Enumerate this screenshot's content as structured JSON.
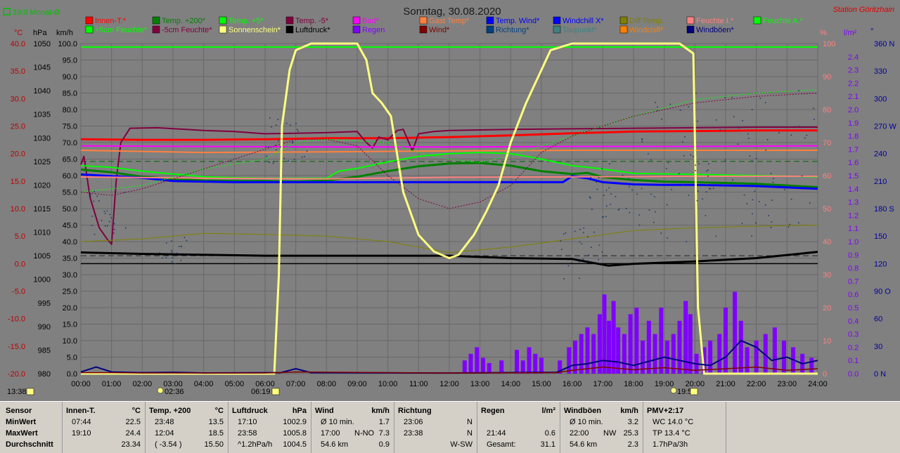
{
  "chart_data": {
    "type": "line",
    "title": "Sonntag, 30.08.2020",
    "station": "Station Göritzhain",
    "monthly_avg_label": "19.0 Monat-Ø",
    "axes": {
      "temp": {
        "unit": "°C",
        "range": [
          -20,
          40
        ],
        "ticks": [
          "40.0",
          "35.0",
          "30.0",
          "25.0",
          "20.0",
          "15.0",
          "10.0",
          "5.0",
          "0.0",
          "-5.0",
          "-10.0",
          "-15.0",
          "-20.0"
        ]
      },
      "pressure": {
        "unit": "hPa",
        "range": [
          980,
          1050
        ],
        "ticks": [
          "1050",
          "1045",
          "1040",
          "1035",
          "1030",
          "1025",
          "1020",
          "1015",
          "1010",
          "1005",
          "1000",
          "995",
          "990",
          "985",
          "980"
        ]
      },
      "wind": {
        "unit": "km/h",
        "range": [
          0,
          100
        ],
        "ticks": [
          "100.0",
          "95.0",
          "90.0",
          "85.0",
          "80.0",
          "75.0",
          "70.0",
          "65.0",
          "60.0",
          "55.0",
          "50.0",
          "45.0",
          "40.0",
          "35.0",
          "30.0",
          "25.0",
          "20.0",
          "15.0",
          "10.0",
          "5.0",
          "0.0"
        ]
      },
      "humidity": {
        "unit": "%",
        "range": [
          0,
          100
        ],
        "ticks": [
          "100",
          "90",
          "80",
          "70",
          "60",
          "50",
          "40",
          "30",
          "20",
          "10",
          "0"
        ]
      },
      "rain": {
        "unit": "l/m²",
        "range": [
          0,
          2.5
        ],
        "ticks": [
          "2.4",
          "2.3",
          "2.2",
          "2.1",
          "2.0",
          "1.9",
          "1.8",
          "1.7",
          "1.6",
          "1.5",
          "1.4",
          "1.3",
          "1.2",
          "1.1",
          "1.0",
          "0.9",
          "0.8",
          "0.7",
          "0.6",
          "0.5",
          "0.4",
          "0.3",
          "0.2",
          "0.1",
          "0.0"
        ]
      },
      "direction": {
        "unit": "°",
        "range": [
          0,
          360
        ],
        "ticks": [
          "360 N",
          "330",
          "300",
          "270 W",
          "240",
          "210",
          "180 S",
          "150",
          "120",
          "90 O",
          "60",
          "30",
          "0 N"
        ]
      },
      "time_ticks": [
        "00:00",
        "01:00",
        "02:00",
        "03:00",
        "04:00",
        "05:00",
        "06:00",
        "07:00",
        "08:00",
        "09:00",
        "10:00",
        "11:00",
        "12:00",
        "13:00",
        "14:00",
        "15:00",
        "16:00",
        "17:00",
        "18:00",
        "19:00",
        "20:00",
        "21:00",
        "22:00",
        "23:00",
        "24:00"
      ]
    },
    "sun_markers": {
      "moonset": "02:36",
      "sunrise": "06:19",
      "sunset": "19:57",
      "now": "13:38"
    },
    "legend": [
      {
        "label": "Innen-T.*",
        "color": "#ff0000"
      },
      {
        "label": "Temp. +200*",
        "color": "#008000"
      },
      {
        "label": "Temp. +5*",
        "color": "#00ff00"
      },
      {
        "label": "Temp. -5*",
        "color": "#800040"
      },
      {
        "label": "Bad*",
        "color": "#ff00ff"
      },
      {
        "label": "Gast Temp*",
        "color": "#ff8040"
      },
      {
        "label": "Temp. Wind*",
        "color": "#0000ff"
      },
      {
        "label": "Windchill X*",
        "color": "#0000ff"
      },
      {
        "label": "Diff Temp.",
        "color": "#808000"
      },
      {
        "label": "Feuchte I.*",
        "color": "#ff8080"
      },
      {
        "label": "Feuchte A.*",
        "color": "#00ff00"
      },
      {
        "label": "+5cm Feuchte*",
        "color": "#00ff00"
      },
      {
        "label": "-5cm Feuchte*",
        "color": "#800040"
      },
      {
        "label": "Sonnenschein*",
        "color": "#ffff80"
      },
      {
        "label": "Luftdruck*",
        "color": "#000000"
      },
      {
        "label": "Regen",
        "color": "#8000ff"
      },
      {
        "label": "Wind*",
        "color": "#800000"
      },
      {
        "label": "Richtung*",
        "color": "#004080"
      },
      {
        "label": "Taupunkt*",
        "color": "#408080"
      },
      {
        "label": "Windchill*",
        "color": "#ff8000"
      },
      {
        "label": "Windböen*",
        "color": "#000080"
      }
    ],
    "series": [
      {
        "name": "Innen-T.*",
        "color": "#ff0000",
        "axis": "temp",
        "width": 3,
        "x": [
          0,
          2,
          4,
          6,
          8,
          10,
          12,
          14,
          16,
          18,
          20,
          22,
          24
        ],
        "y": [
          22.6,
          22.5,
          22.5,
          22.6,
          22.8,
          22.8,
          23.0,
          23.3,
          23.7,
          24.0,
          24.1,
          24.2,
          24.2
        ]
      },
      {
        "name": "Temp. -5*",
        "color": "#800040",
        "axis": "temp",
        "width": 2,
        "x": [
          0,
          0.1,
          0.3,
          0.6,
          0.85,
          1.0,
          1.15,
          1.3,
          1.6,
          2.5,
          4,
          5,
          6,
          7,
          8,
          9,
          9.3,
          9.5,
          9.7,
          10,
          10.3,
          10.5,
          10.8,
          11,
          11.5,
          12,
          14,
          16,
          18,
          20,
          22,
          24
        ],
        "y": [
          18,
          19.5,
          12,
          6.5,
          4.5,
          3.5,
          15,
          22,
          24.6,
          24.7,
          24.2,
          24.0,
          23.6,
          23.7,
          23.8,
          24.0,
          22,
          21,
          23,
          22.5,
          24.2,
          24.4,
          20.5,
          23.6,
          24.0,
          24.2,
          24.4,
          24.5,
          24.6,
          24.7,
          24.8,
          24.8
        ]
      },
      {
        "name": "Bad*",
        "color": "#ff00ff",
        "axis": "temp",
        "width": 2,
        "x": [
          0,
          4,
          8,
          12,
          16,
          20,
          24
        ],
        "y": [
          21.4,
          21.3,
          21.2,
          21.2,
          21.3,
          21.3,
          21.4
        ]
      },
      {
        "name": "Gast Temp*",
        "color": "#ff8040",
        "axis": "temp",
        "width": 2,
        "x": [
          0,
          4,
          8,
          12,
          16,
          20,
          24
        ],
        "y": [
          20.6,
          20.2,
          20.3,
          20.5,
          20.6,
          20.6,
          20.6
        ]
      },
      {
        "name": "Temp. +5*",
        "color": "#00ff00",
        "axis": "temp",
        "width": 2,
        "x": [
          0,
          1,
          2,
          3,
          4,
          5,
          6,
          7,
          8,
          8.4,
          9,
          10,
          11,
          12,
          13,
          14,
          15,
          16,
          17,
          18,
          20,
          22,
          24
        ],
        "y": [
          17.8,
          17.5,
          16.8,
          16.3,
          15.8,
          15.6,
          15.5,
          15.5,
          15.5,
          16.8,
          17.3,
          18.5,
          19.5,
          20,
          20.2,
          20,
          19,
          17.8,
          17.2,
          16.4,
          16.2,
          16.0,
          15.8
        ]
      },
      {
        "name": "Temp. +200*",
        "color": "#008000",
        "axis": "temp",
        "width": 3,
        "x": [
          0,
          1,
          2,
          3,
          4,
          5,
          6,
          7,
          8,
          9,
          10,
          11,
          12,
          13,
          14,
          15,
          16,
          16.5,
          17,
          18,
          19,
          20,
          22,
          24
        ],
        "y": [
          17.1,
          16.6,
          15.8,
          15.4,
          15.1,
          15.0,
          15.0,
          14.9,
          15.1,
          15.8,
          16.8,
          17.7,
          18.2,
          18.3,
          17.8,
          16.8,
          16.3,
          16.5,
          15.7,
          15.2,
          14.9,
          14.8,
          14.5,
          13.9
        ]
      },
      {
        "name": "Temp. Wind*",
        "color": "#0000ff",
        "axis": "temp",
        "width": 3,
        "x": [
          0,
          1,
          2,
          3,
          4,
          5,
          6,
          7,
          8,
          9,
          10,
          11,
          12,
          13,
          14,
          15,
          15.7,
          16,
          16.5,
          17,
          18,
          19,
          20,
          22,
          24
        ],
        "y": [
          16.2,
          15.9,
          15.6,
          15.0,
          14.9,
          14.8,
          14.8,
          14.8,
          14.8,
          14.8,
          14.8,
          14.8,
          14.8,
          14.8,
          14.8,
          14.8,
          14.8,
          15.9,
          15.5,
          14.8,
          14.4,
          14.3,
          14.3,
          14.1,
          13.6
        ]
      },
      {
        "name": "Feuchte I.*",
        "color": "#ff8080",
        "axis": "humidity",
        "width": 2,
        "x": [
          0,
          4,
          8,
          12,
          16,
          20,
          24
        ],
        "y": [
          59.6,
          59.2,
          59,
          59.5,
          59.6,
          59.8,
          59.8
        ]
      },
      {
        "name": "Diff Temp.",
        "color": "#808000",
        "axis": "temp",
        "width": 1,
        "x": [
          0,
          2,
          4,
          6,
          8,
          10,
          12,
          14,
          16,
          18,
          20,
          22,
          24
        ],
        "y": [
          4.0,
          4.5,
          5.5,
          5.3,
          5.0,
          4.0,
          2.0,
          3.0,
          4.5,
          6.0,
          6.5,
          6.8,
          7.0
        ]
      },
      {
        "name": "Luftdruck*",
        "color": "#000000",
        "axis": "pressure",
        "width": 3,
        "x": [
          0,
          2,
          4,
          6,
          8,
          10,
          12,
          14,
          16,
          17.17,
          18,
          20,
          22,
          23.97,
          24
        ],
        "y": [
          1005.7,
          1005.4,
          1005.2,
          1005.0,
          1005.0,
          1005.0,
          1005.0,
          1004.5,
          1004.3,
          1002.9,
          1003.3,
          1003.8,
          1004.5,
          1005.8,
          1005.8
        ]
      },
      {
        "name": "Feuchte A.*",
        "color": "#00ff00",
        "axis": "humidity",
        "width": 1,
        "dash": "2,2",
        "x": [
          0,
          2,
          4,
          6,
          7,
          8,
          10,
          11,
          12,
          13,
          14,
          15,
          16,
          17,
          18,
          20,
          22,
          24
        ],
        "y": [
          55,
          57,
          62,
          65,
          70,
          71,
          70,
          67,
          65,
          64,
          66,
          69,
          72,
          75,
          78,
          83,
          85,
          86
        ]
      },
      {
        "name": "Taupunkt*",
        "color": "#800040",
        "axis": "humidity",
        "width": 1,
        "dash": "2,2",
        "x": [
          0,
          1,
          2,
          4,
          6,
          7,
          8,
          9,
          10,
          11,
          12,
          13,
          14,
          15,
          16,
          17,
          18,
          20,
          22,
          24
        ],
        "y": [
          55,
          54,
          56,
          62,
          68,
          71,
          71,
          69,
          60,
          53,
          50,
          52,
          57,
          67,
          72,
          75,
          78,
          82,
          84,
          85
        ]
      },
      {
        "name": "Sonnenschein*",
        "color": "#ffff80",
        "axis": "wind",
        "width": 3,
        "x": [
          0,
          6.3,
          6.45,
          6.55,
          6.8,
          7,
          7.5,
          8.5,
          9.0,
          9.3,
          9.5,
          9.8,
          10.1,
          10.5,
          11,
          11.5,
          12,
          12.3,
          12.8,
          13.2,
          13.6,
          14,
          14.5,
          15,
          15.3,
          16,
          19.5,
          19.95,
          20.1,
          20.3,
          24
        ],
        "y": [
          0,
          0,
          30,
          75,
          92,
          98,
          100,
          100,
          100,
          95,
          85,
          82,
          78,
          55,
          42,
          37,
          35,
          36,
          42,
          49,
          57,
          70,
          82,
          92,
          98,
          100,
          100,
          97,
          20,
          0,
          0
        ]
      }
    ],
    "rain_bars": [
      [
        12.5,
        0.1
      ],
      [
        12.7,
        0.15
      ],
      [
        12.9,
        0.2
      ],
      [
        13.1,
        0.12
      ],
      [
        13.3,
        0.08
      ],
      [
        13.7,
        0.1
      ],
      [
        14.2,
        0.18
      ],
      [
        14.4,
        0.1
      ],
      [
        14.6,
        0.2
      ],
      [
        14.8,
        0.15
      ],
      [
        15.0,
        0.12
      ],
      [
        15.6,
        0.1
      ],
      [
        15.9,
        0.2
      ],
      [
        16.1,
        0.25
      ],
      [
        16.3,
        0.3
      ],
      [
        16.5,
        0.35
      ],
      [
        16.7,
        0.3
      ],
      [
        16.9,
        0.45
      ],
      [
        17.05,
        0.6
      ],
      [
        17.2,
        0.4
      ],
      [
        17.35,
        0.55
      ],
      [
        17.5,
        0.35
      ],
      [
        17.7,
        0.3
      ],
      [
        17.9,
        0.45
      ],
      [
        18.1,
        0.5
      ],
      [
        18.3,
        0.25
      ],
      [
        18.5,
        0.4
      ],
      [
        18.7,
        0.3
      ],
      [
        18.9,
        0.5
      ],
      [
        19.1,
        0.25
      ],
      [
        19.3,
        0.3
      ],
      [
        19.5,
        0.4
      ],
      [
        19.7,
        0.55
      ],
      [
        19.85,
        0.45
      ],
      [
        20.05,
        0.15
      ],
      [
        20.3,
        0.2
      ],
      [
        20.5,
        0.25
      ],
      [
        20.8,
        0.3
      ],
      [
        21.0,
        0.5
      ],
      [
        21.3,
        0.62
      ],
      [
        21.5,
        0.4
      ],
      [
        21.7,
        0.2
      ],
      [
        22.0,
        0.25
      ],
      [
        22.3,
        0.3
      ],
      [
        22.6,
        0.35
      ],
      [
        22.9,
        0.25
      ],
      [
        23.2,
        0.2
      ],
      [
        23.5,
        0.15
      ],
      [
        23.8,
        0.12
      ]
    ]
  },
  "stats": {
    "row_labels": {
      "sensor": "Sensor",
      "min": "MinWert",
      "max": "MaxWert",
      "avg": "Durchschnitt"
    },
    "columns": [
      {
        "name": "Innen-T.",
        "unit": "°C",
        "min": {
          "time": "07:44",
          "value": "22.5"
        },
        "max": {
          "time": "19:10",
          "value": "24.4"
        },
        "avg": {
          "time": "",
          "value": "23.34"
        }
      },
      {
        "name": "Temp. +200",
        "unit": "°C",
        "min": {
          "time": "23:48",
          "value": "13.5"
        },
        "max": {
          "time": "12:04",
          "value": "18.5"
        },
        "avg": {
          "time": "( -3.54 )",
          "value": "15.50"
        }
      },
      {
        "name": "Luftdruck",
        "unit": "hPa",
        "min": {
          "time": "17:10",
          "value": "1002.9"
        },
        "max": {
          "time": "23:58",
          "value": "1005.8"
        },
        "avg": {
          "time": "^1.2hPa/h",
          "value": "1004.5"
        }
      },
      {
        "name": "Wind",
        "unit": "km/h",
        "min": {
          "time": "Ø 10 min.",
          "value": "1.7"
        },
        "max": {
          "time": "17:00",
          "extra": "N-NO",
          "value": "7.3"
        },
        "avg": {
          "time": "54.6 km",
          "value": "0.9"
        }
      },
      {
        "name": "Richtung",
        "unit": "",
        "min": {
          "time": "23:06",
          "value": "N"
        },
        "max": {
          "time": "23:38",
          "value": "N"
        },
        "avg": {
          "time": "",
          "value": "W-SW"
        }
      },
      {
        "name": "Regen",
        "unit": "l/m²",
        "min": {
          "time": "",
          "value": ""
        },
        "max": {
          "time": "21:44",
          "value": "0.6"
        },
        "avg": {
          "time": "Gesamt:",
          "value": "31.1"
        }
      },
      {
        "name": "Windböen",
        "unit": "km/h",
        "min": {
          "time": "Ø 10 min.",
          "value": "3.2"
        },
        "max": {
          "time": "22:00",
          "extra": "NW",
          "value": "25.3"
        },
        "avg": {
          "time": "54.6 km",
          "value": "2.3"
        }
      },
      {
        "name": "PMV+2:17",
        "unit": "",
        "min": {
          "time": "WC 14.0 °C",
          "value": ""
        },
        "max": {
          "time": "TP 13.4 °C",
          "value": ""
        },
        "avg": {
          "time": "1.7hPa/3h",
          "value": ""
        }
      }
    ]
  }
}
